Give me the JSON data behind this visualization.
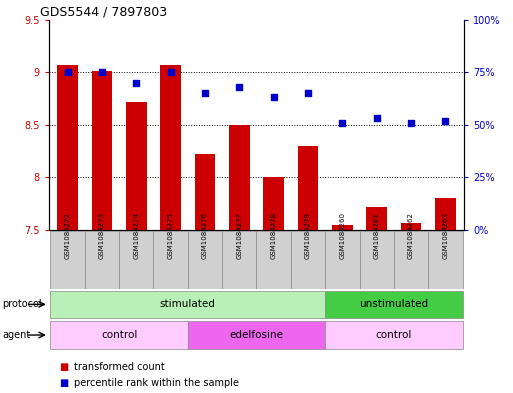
{
  "title": "GDS5544 / 7897803",
  "samples": [
    "GSM1084272",
    "GSM1084273",
    "GSM1084274",
    "GSM1084275",
    "GSM1084276",
    "GSM1084277",
    "GSM1084278",
    "GSM1084279",
    "GSM1084260",
    "GSM1084261",
    "GSM1084262",
    "GSM1084263"
  ],
  "bar_values": [
    9.07,
    9.01,
    8.72,
    9.07,
    8.22,
    8.5,
    8.0,
    8.3,
    7.55,
    7.72,
    7.57,
    7.8
  ],
  "dot_values_pct": [
    75,
    75,
    70,
    75,
    65,
    68,
    63,
    65,
    51,
    53,
    51,
    52
  ],
  "bar_baseline": 7.5,
  "ylim_left": [
    7.5,
    9.5
  ],
  "ylim_right": [
    0,
    100
  ],
  "yticks_left": [
    7.5,
    8.0,
    8.5,
    9.0,
    9.5
  ],
  "ytick_labels_left": [
    "7.5",
    "8",
    "8.5",
    "9",
    "9.5"
  ],
  "yticks_right": [
    0,
    25,
    50,
    75,
    100
  ],
  "ytick_labels_right": [
    "0%",
    "25%",
    "50%",
    "75%",
    "100%"
  ],
  "bar_color": "#cc0000",
  "dot_color": "#0000cc",
  "grid_color": "#000000",
  "sample_box_color": "#d0d0d0",
  "protocol_groups": [
    {
      "label": "stimulated",
      "start": 0,
      "end": 8,
      "color": "#b8f0b8"
    },
    {
      "label": "unstimulated",
      "start": 8,
      "end": 12,
      "color": "#44cc44"
    }
  ],
  "agent_groups": [
    {
      "label": "control",
      "start": 0,
      "end": 4,
      "color": "#ffccff"
    },
    {
      "label": "edelfosine",
      "start": 4,
      "end": 8,
      "color": "#ee66ee"
    },
    {
      "label": "control",
      "start": 8,
      "end": 12,
      "color": "#ffccff"
    }
  ],
  "legend_bar_label": "transformed count",
  "legend_dot_label": "percentile rank within the sample",
  "protocol_label": "protocol",
  "agent_label": "agent",
  "left_tick_color": "#cc0000",
  "right_tick_color": "#0000cc",
  "background_color": "#ffffff"
}
